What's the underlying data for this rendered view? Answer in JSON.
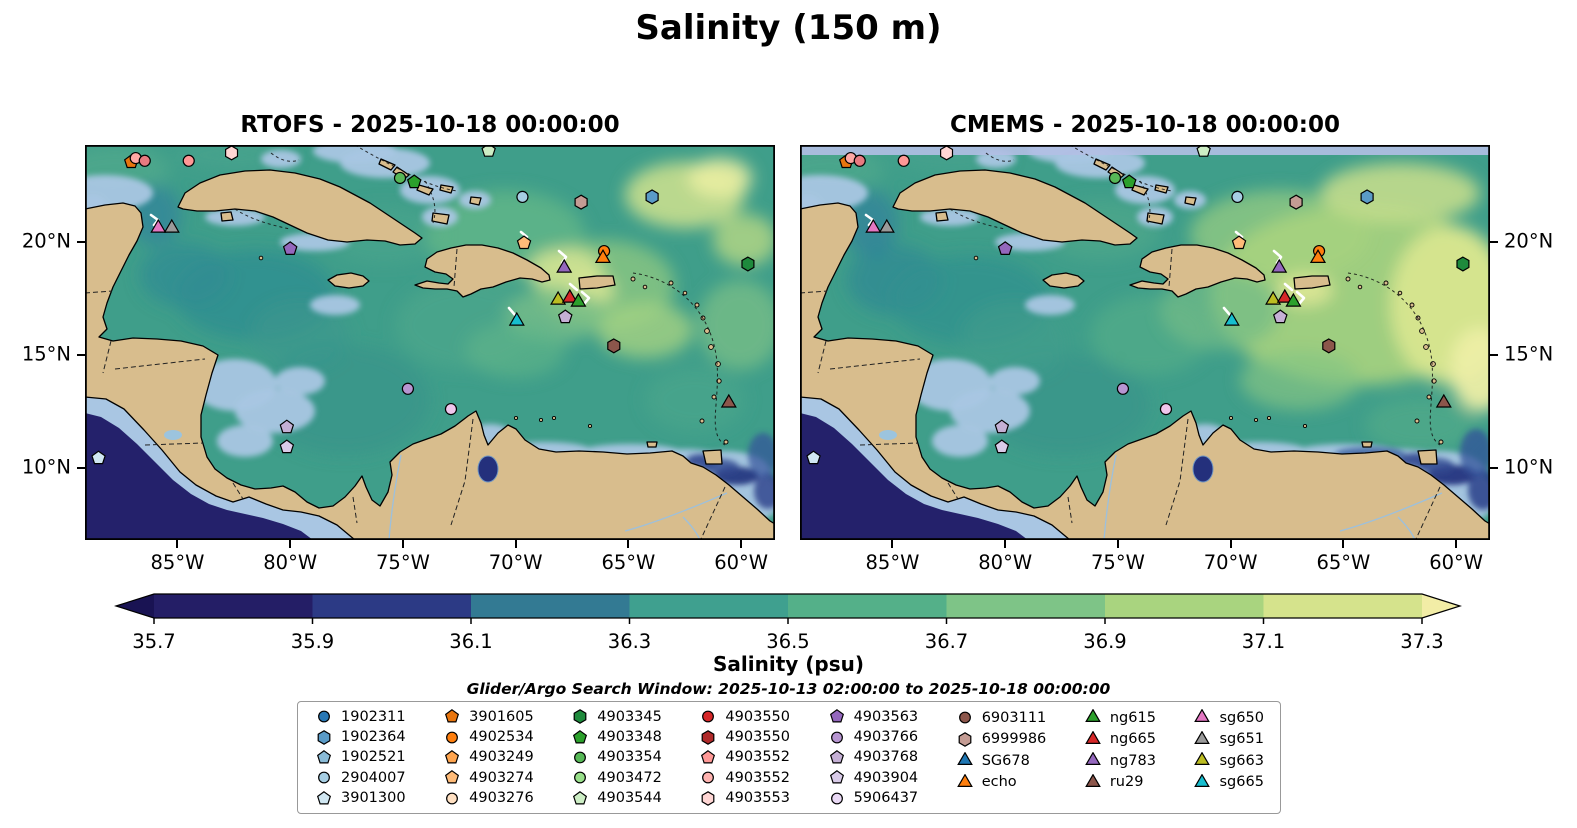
{
  "figure": {
    "title": "Salinity (150 m)",
    "colorbar_label": "Salinity (psu)",
    "search_window": "Glider/Argo Search Window: 2025-10-13 02:00:00 to 2025-10-18 00:00:00"
  },
  "panels": [
    {
      "id": "rtofs",
      "title": "RTOFS - 2025-10-18 00:00:00"
    },
    {
      "id": "cmems",
      "title": "CMEMS - 2025-10-18 00:00:00"
    }
  ],
  "axes": {
    "lat_ticks": [
      {
        "label": "20°N",
        "lat": 20
      },
      {
        "label": "15°N",
        "lat": 15
      },
      {
        "label": "10°N",
        "lat": 10
      }
    ],
    "lon_ticks": [
      {
        "label": "85°W",
        "lon": -85
      },
      {
        "label": "80°W",
        "lon": -80
      },
      {
        "label": "75°W",
        "lon": -75
      },
      {
        "label": "70°W",
        "lon": -70
      },
      {
        "label": "65°W",
        "lon": -65
      },
      {
        "label": "60°W",
        "lon": -60
      }
    ]
  },
  "colorbar": {
    "tip_left": "#191353",
    "tip_right": "#f2eda6",
    "band_colors": [
      "#241e66",
      "#2c3a85",
      "#337a93",
      "#3fa08f",
      "#54b089",
      "#7ec487",
      "#a9d47f",
      "#d5e38c"
    ],
    "ticks": [
      {
        "label": "35.7",
        "v": 35.7
      },
      {
        "label": "35.9",
        "v": 35.9
      },
      {
        "label": "36.1",
        "v": 36.1
      },
      {
        "label": "36.3",
        "v": 36.3
      },
      {
        "label": "36.5",
        "v": 36.5
      },
      {
        "label": "36.7",
        "v": 36.7
      },
      {
        "label": "36.9",
        "v": 36.9
      },
      {
        "label": "37.1",
        "v": 37.1
      },
      {
        "label": "37.3",
        "v": 37.3
      }
    ]
  },
  "legend": {
    "columns": [
      [
        {
          "label": "1902311",
          "marker": "circle",
          "color": "#2878b5"
        },
        {
          "label": "1902364",
          "marker": "hexagon",
          "color": "#5a9bc7"
        },
        {
          "label": "1902521",
          "marker": "pentagon",
          "color": "#8abbd7"
        },
        {
          "label": "2904007",
          "marker": "circle",
          "color": "#a6cee3"
        },
        {
          "label": "3901300",
          "marker": "pentagon",
          "color": "#d0e7f2"
        }
      ],
      [
        {
          "label": "3901605",
          "marker": "pentagon",
          "color": "#e8750e"
        },
        {
          "label": "4902534",
          "marker": "circle",
          "color": "#ff7f0e"
        },
        {
          "label": "4903249",
          "marker": "pentagon",
          "color": "#ffa54f"
        },
        {
          "label": "4903274",
          "marker": "pentagon",
          "color": "#ffbb78"
        },
        {
          "label": "4903276",
          "marker": "circle",
          "color": "#ffe0c2"
        }
      ],
      [
        {
          "label": "4903345",
          "marker": "hexagon",
          "color": "#1e8a3c"
        },
        {
          "label": "4903348",
          "marker": "pentagon",
          "color": "#2ca02c"
        },
        {
          "label": "4903354",
          "marker": "circle",
          "color": "#57b857"
        },
        {
          "label": "4903472",
          "marker": "circle",
          "color": "#98df8a"
        },
        {
          "label": "4903544",
          "marker": "pentagon",
          "color": "#cdeec5"
        }
      ],
      [
        {
          "label": "4903550",
          "marker": "circle",
          "color": "#d62728"
        },
        {
          "label": "4903550",
          "marker": "hexagon",
          "color": "#b02a2a"
        },
        {
          "label": "4903552",
          "marker": "pentagon",
          "color": "#ff9896"
        },
        {
          "label": "4903552",
          "marker": "circle",
          "color": "#ffb3b0"
        },
        {
          "label": "4903553",
          "marker": "hexagon",
          "color": "#ffd6d4"
        }
      ],
      [
        {
          "label": "4903563",
          "marker": "pentagon",
          "color": "#9467bd"
        },
        {
          "label": "4903766",
          "marker": "circle",
          "color": "#b795d1"
        },
        {
          "label": "4903768",
          "marker": "pentagon",
          "color": "#c5b0d5"
        },
        {
          "label": "4903904",
          "marker": "pentagon",
          "color": "#d9cbe8"
        },
        {
          "label": "5906437",
          "marker": "circle",
          "color": "#ead9f5"
        }
      ],
      [
        {
          "label": "6903111",
          "marker": "circle",
          "color": "#8c564b"
        },
        {
          "label": "6999986",
          "marker": "hexagon",
          "color": "#c49c94"
        },
        {
          "label": "SG678",
          "marker": "triangle",
          "color": "#1f77b4"
        },
        {
          "label": "echo",
          "marker": "triangle",
          "color": "#ff7f0e"
        }
      ],
      [
        {
          "label": "ng615",
          "marker": "triangle",
          "color": "#2ca02c"
        },
        {
          "label": "ng665",
          "marker": "triangle",
          "color": "#d62728"
        },
        {
          "label": "ng783",
          "marker": "triangle",
          "color": "#9467bd"
        },
        {
          "label": "ru29",
          "marker": "triangle",
          "color": "#8c564b"
        }
      ],
      [
        {
          "label": "sg650",
          "marker": "triangle",
          "color": "#e377c2"
        },
        {
          "label": "sg651",
          "marker": "triangle",
          "color": "#9a9a9a"
        },
        {
          "label": "sg663",
          "marker": "triangle",
          "color": "#bcbd22"
        },
        {
          "label": "sg665",
          "marker": "triangle",
          "color": "#17becf"
        }
      ]
    ]
  },
  "chart_data": {
    "type": "heatmap",
    "title": "Salinity (150 m)",
    "panels": [
      "RTOFS - 2025-10-18 00:00:00",
      "CMEMS - 2025-10-18 00:00:00"
    ],
    "variable": "Salinity (psu)",
    "region": "Caribbean Sea",
    "colorbar_ticks": [
      35.7,
      35.9,
      36.1,
      36.3,
      36.5,
      36.7,
      36.9,
      37.1,
      37.3
    ],
    "colorbar_range": [
      35.7,
      37.3
    ],
    "extent": {
      "lon_min": -89.1,
      "lon_max": -58.5,
      "lat_min": 6.8,
      "lat_max": 24.3
    },
    "markers": [
      {
        "id": "3901605",
        "shape": "pentagon",
        "color": "#e8750e",
        "lon": -87.05,
        "lat": 23.55
      },
      {
        "id": "4903552",
        "shape": "circle",
        "color": "#ffa8a4",
        "lon": -86.85,
        "lat": 23.72
      },
      {
        "id": "4903550",
        "shape": "circle",
        "color": "#e87a80",
        "lon": -86.45,
        "lat": 23.6
      },
      {
        "id": "4903552",
        "shape": "circle",
        "color": "#ff9896",
        "lon": -84.5,
        "lat": 23.6
      },
      {
        "id": "4903553",
        "shape": "hexagon",
        "color": "#ffd6d4",
        "lon": -82.6,
        "lat": 23.95
      },
      {
        "id": "sg650",
        "shape": "triangle",
        "color": "#e377c2",
        "lon": -85.85,
        "lat": 20.62
      },
      {
        "id": "sg651",
        "shape": "triangle",
        "color": "#9a9a9a",
        "lon": -85.25,
        "lat": 20.62
      },
      {
        "id": "4903354",
        "shape": "circle",
        "color": "#57b857",
        "lon": -75.13,
        "lat": 22.84
      },
      {
        "id": "4903348",
        "shape": "pentagon",
        "color": "#2ca02c",
        "lon": -74.5,
        "lat": 22.66
      },
      {
        "id": "4903544",
        "shape": "pentagon",
        "color": "#cdeec5",
        "lon": -71.2,
        "lat": 24.05
      },
      {
        "id": "2904007",
        "shape": "circle",
        "color": "#a6cee3",
        "lon": -69.7,
        "lat": 22.0
      },
      {
        "id": "6999986",
        "shape": "hexagon",
        "color": "#c49c94",
        "lon": -67.1,
        "lat": 21.77
      },
      {
        "id": "1902364",
        "shape": "hexagon",
        "color": "#5a9bc7",
        "lon": -63.95,
        "lat": 22.0
      },
      {
        "id": "4903274",
        "shape": "pentagon",
        "color": "#ffbb78",
        "lon": -69.63,
        "lat": 19.96
      },
      {
        "id": "4903563",
        "shape": "pentagon",
        "color": "#9467bd",
        "lon": -80.0,
        "lat": 19.7
      },
      {
        "id": "4902534",
        "shape": "circle",
        "color": "#ff7f0e",
        "lon": -66.08,
        "lat": 19.6
      },
      {
        "id": "echo",
        "shape": "triangle",
        "color": "#ff7f0e",
        "lon": -66.13,
        "lat": 19.28
      },
      {
        "id": "ng783",
        "shape": "triangle",
        "color": "#9467bd",
        "lon": -67.85,
        "lat": 18.85
      },
      {
        "id": "sg663",
        "shape": "triangle",
        "color": "#bcbd22",
        "lon": -68.12,
        "lat": 17.43
      },
      {
        "id": "ng665",
        "shape": "triangle",
        "color": "#d62728",
        "lon": -67.6,
        "lat": 17.52
      },
      {
        "id": "ng615",
        "shape": "triangle",
        "color": "#2ca02c",
        "lon": -67.22,
        "lat": 17.34
      },
      {
        "id": "4903768",
        "shape": "pentagon",
        "color": "#c5b0d5",
        "lon": -67.8,
        "lat": 16.68
      },
      {
        "id": "sg665",
        "shape": "triangle",
        "color": "#17becf",
        "lon": -69.95,
        "lat": 16.5
      },
      {
        "id": "6903111",
        "shape": "hexagon",
        "color": "#8c564b",
        "lon": -65.65,
        "lat": 15.4
      },
      {
        "id": "4903345",
        "shape": "hexagon",
        "color": "#1e8a3c",
        "lon": -59.7,
        "lat": 19.03
      },
      {
        "id": "4903766",
        "shape": "circle",
        "color": "#b795d1",
        "lon": -74.78,
        "lat": 13.5
      },
      {
        "id": "5906437",
        "shape": "circle",
        "color": "#efc6ec",
        "lon": -72.87,
        "lat": 12.6
      },
      {
        "id": "4903768",
        "shape": "pentagon",
        "color": "#c5b0d5",
        "lon": -80.15,
        "lat": 11.8
      },
      {
        "id": "4903904",
        "shape": "pentagon",
        "color": "#d9cbe8",
        "lon": -80.15,
        "lat": 10.92
      },
      {
        "id": "ru29",
        "shape": "triangle",
        "color": "#8c564b",
        "lon": -60.55,
        "lat": 12.87
      },
      {
        "id": "3901300",
        "shape": "pentagon",
        "color": "#d0e7f2",
        "lon": -88.5,
        "lat": 10.43
      }
    ]
  }
}
